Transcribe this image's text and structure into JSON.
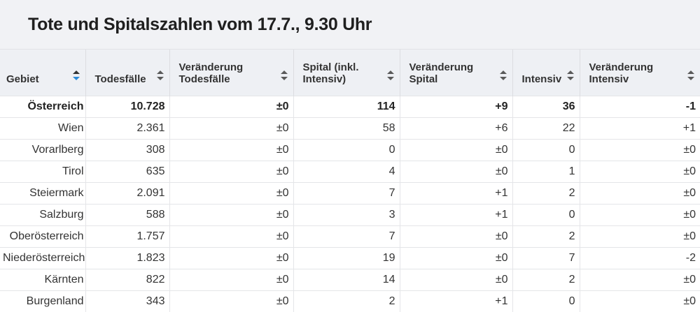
{
  "title": "Tote und Spitalszahlen vom 17.7., 9.30 Uhr",
  "columns": [
    {
      "label_1": "Gebiet",
      "label_2": "",
      "sort_active": true
    },
    {
      "label_1": "Todesfälle",
      "label_2": "",
      "sort_active": false
    },
    {
      "label_1": "Veränderung",
      "label_2": "Todesfälle",
      "sort_active": false
    },
    {
      "label_1": "Spital (inkl.",
      "label_2": "Intensiv)",
      "sort_active": false
    },
    {
      "label_1": "Veränderung",
      "label_2": "Spital",
      "sort_active": false
    },
    {
      "label_1": "Intensiv",
      "label_2": "",
      "sort_active": false
    },
    {
      "label_1": "Veränderung",
      "label_2": "Intensiv",
      "sort_active": false
    }
  ],
  "rows": [
    [
      "Österreich",
      "10.728",
      "±0",
      "114",
      "+9",
      "36",
      "-1"
    ],
    [
      "Wien",
      "2.361",
      "±0",
      "58",
      "+6",
      "22",
      "+1"
    ],
    [
      "Vorarlberg",
      "308",
      "±0",
      "0",
      "±0",
      "0",
      "±0"
    ],
    [
      "Tirol",
      "635",
      "±0",
      "4",
      "±0",
      "1",
      "±0"
    ],
    [
      "Steiermark",
      "2.091",
      "±0",
      "7",
      "+1",
      "2",
      "±0"
    ],
    [
      "Salzburg",
      "588",
      "±0",
      "3",
      "+1",
      "0",
      "±0"
    ],
    [
      "Oberösterreich",
      "1.757",
      "±0",
      "7",
      "±0",
      "2",
      "±0"
    ],
    [
      "Niederösterreich",
      "1.823",
      "±0",
      "19",
      "±0",
      "7",
      "-2"
    ],
    [
      "Kärnten",
      "822",
      "±0",
      "14",
      "±0",
      "2",
      "±0"
    ],
    [
      "Burgenland",
      "343",
      "±0",
      "2",
      "+1",
      "0",
      "±0"
    ]
  ]
}
